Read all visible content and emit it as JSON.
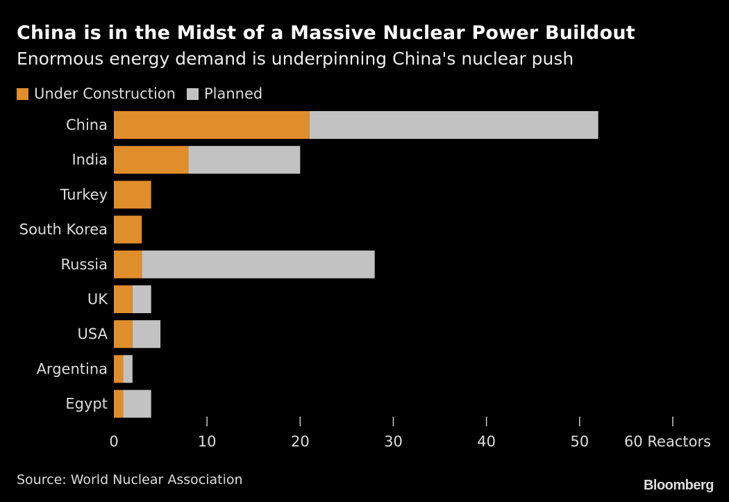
{
  "title": "China is in the Midst of a Massive Nuclear Power Buildout",
  "subtitle": "Enormous energy demand is underpinning China's nuclear push",
  "source": "Source: World Nuclear Association",
  "logo": "Bloomberg",
  "chart_data": {
    "type": "bar",
    "orientation": "horizontal",
    "stacked": true,
    "categories": [
      "China",
      "India",
      "Turkey",
      "South Korea",
      "Russia",
      "UK",
      "USA",
      "Argentina",
      "Egypt"
    ],
    "series": [
      {
        "name": "Under Construction",
        "color": "#e08d2c",
        "values": [
          21,
          8,
          4,
          3,
          3,
          2,
          2,
          1,
          1
        ]
      },
      {
        "name": "Planned",
        "color": "#c2c2c2",
        "values": [
          31,
          12,
          0,
          0,
          25,
          2,
          3,
          1,
          3
        ]
      }
    ],
    "xlim": [
      0,
      60
    ],
    "xticks": [
      0,
      10,
      20,
      30,
      40,
      50,
      60
    ],
    "xtick_labels": [
      "0",
      "10",
      "20",
      "30",
      "40",
      "50",
      "60 Reactors"
    ],
    "legend": "top-left",
    "grid": false
  }
}
